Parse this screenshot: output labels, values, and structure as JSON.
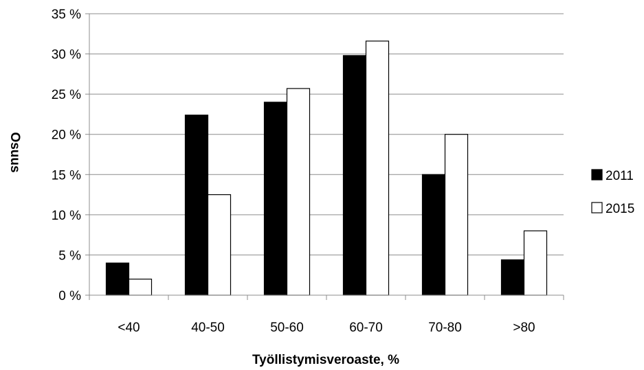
{
  "chart_data": {
    "type": "bar",
    "title": "",
    "xlabel": "Työllistymisveroaste, %",
    "ylabel": "Osuus",
    "ylim": [
      0,
      35
    ],
    "yticks": [
      0,
      5,
      10,
      15,
      20,
      25,
      30,
      35
    ],
    "ytick_labels": [
      "0 %",
      "5 %",
      "10 %",
      "15 %",
      "20 %",
      "25 %",
      "30 %",
      "35 %"
    ],
    "grid": true,
    "legend_position": "right",
    "categories": [
      "<40",
      "40-50",
      "50-60",
      "60-70",
      "70-80",
      ">80"
    ],
    "series": [
      {
        "name": "2011",
        "color": "#000000",
        "values": [
          4.0,
          22.4,
          24.0,
          29.8,
          15.0,
          4.4
        ]
      },
      {
        "name": "2015",
        "color": "#ffffff",
        "values": [
          2.0,
          12.5,
          25.7,
          31.6,
          20.0,
          8.0
        ]
      }
    ]
  }
}
